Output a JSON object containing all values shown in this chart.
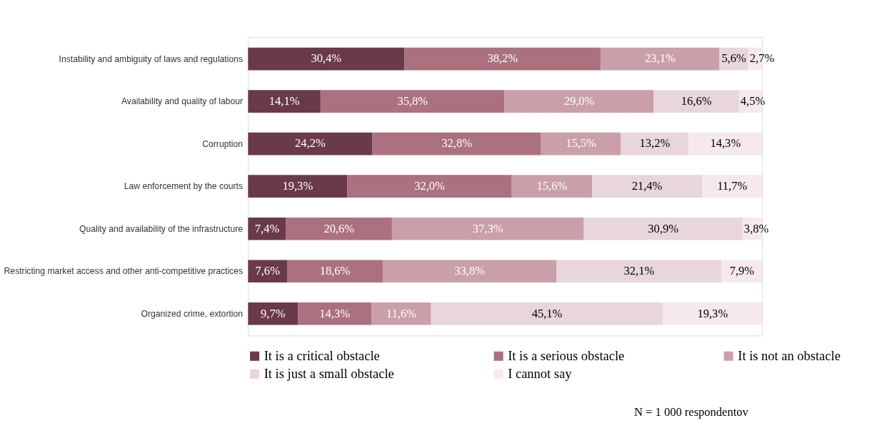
{
  "chart_data": {
    "type": "bar",
    "orientation": "horizontal",
    "stacked": true,
    "tick_labels": "y",
    "grid": false,
    "legend": "bottom",
    "categories": [
      "Instability and ambiguity of laws and regulations",
      "Availability and quality of labour",
      "Corruption",
      "Law enforcement by the courts",
      "Quality and availability of the infrastructure",
      "Restricting market access and other anti-competitive practices",
      "Organized crime, extortion"
    ],
    "series": [
      {
        "name": "It is a critical obstacle",
        "color": "#6a3a4a",
        "values": [
          30.4,
          14.1,
          24.2,
          19.3,
          7.4,
          7.6,
          9.7
        ],
        "value_labels": [
          "30,4%",
          "14,1%",
          "24,2%",
          "19,3%",
          "7,4%",
          "7,6%",
          "9,7%"
        ]
      },
      {
        "name": "It is a serious obstacle",
        "color": "#ab717f",
        "values": [
          38.2,
          35.8,
          32.8,
          32.0,
          20.6,
          18.6,
          14.3
        ],
        "value_labels": [
          "38,2%",
          "35,8%",
          "32,8%",
          "32,0%",
          "20,6%",
          "18,6%",
          "14,3%"
        ]
      },
      {
        "name": "It is not an obstacle",
        "color": "#c99faa",
        "values": [
          23.1,
          29.0,
          15.5,
          15.6,
          37.3,
          33.8,
          11.6
        ],
        "value_labels": [
          "23,1%",
          "29,0%",
          "15,5%",
          "15,6%",
          "37,3%",
          "33,8%",
          "11,6%"
        ]
      },
      {
        "name": "It is just a small obstacle",
        "color": "#e8d6dc",
        "values": [
          5.6,
          16.6,
          13.2,
          21.4,
          30.9,
          32.1,
          45.1
        ],
        "value_labels": [
          "5,6%",
          "16,6%",
          "13,2%",
          "21,4%",
          "30,9%",
          "32,1%",
          "45,1%"
        ]
      },
      {
        "name": "I cannot say",
        "color": "#f5e9ed",
        "values": [
          2.7,
          4.5,
          14.3,
          11.7,
          3.8,
          7.9,
          19.3
        ],
        "value_labels": [
          "2,7%",
          "4,5%",
          "14,3%",
          "11,7%",
          "3,8%",
          "7,9%",
          "19,3%"
        ]
      }
    ],
    "annotations": [
      "N = 1 000 respondentov"
    ]
  }
}
